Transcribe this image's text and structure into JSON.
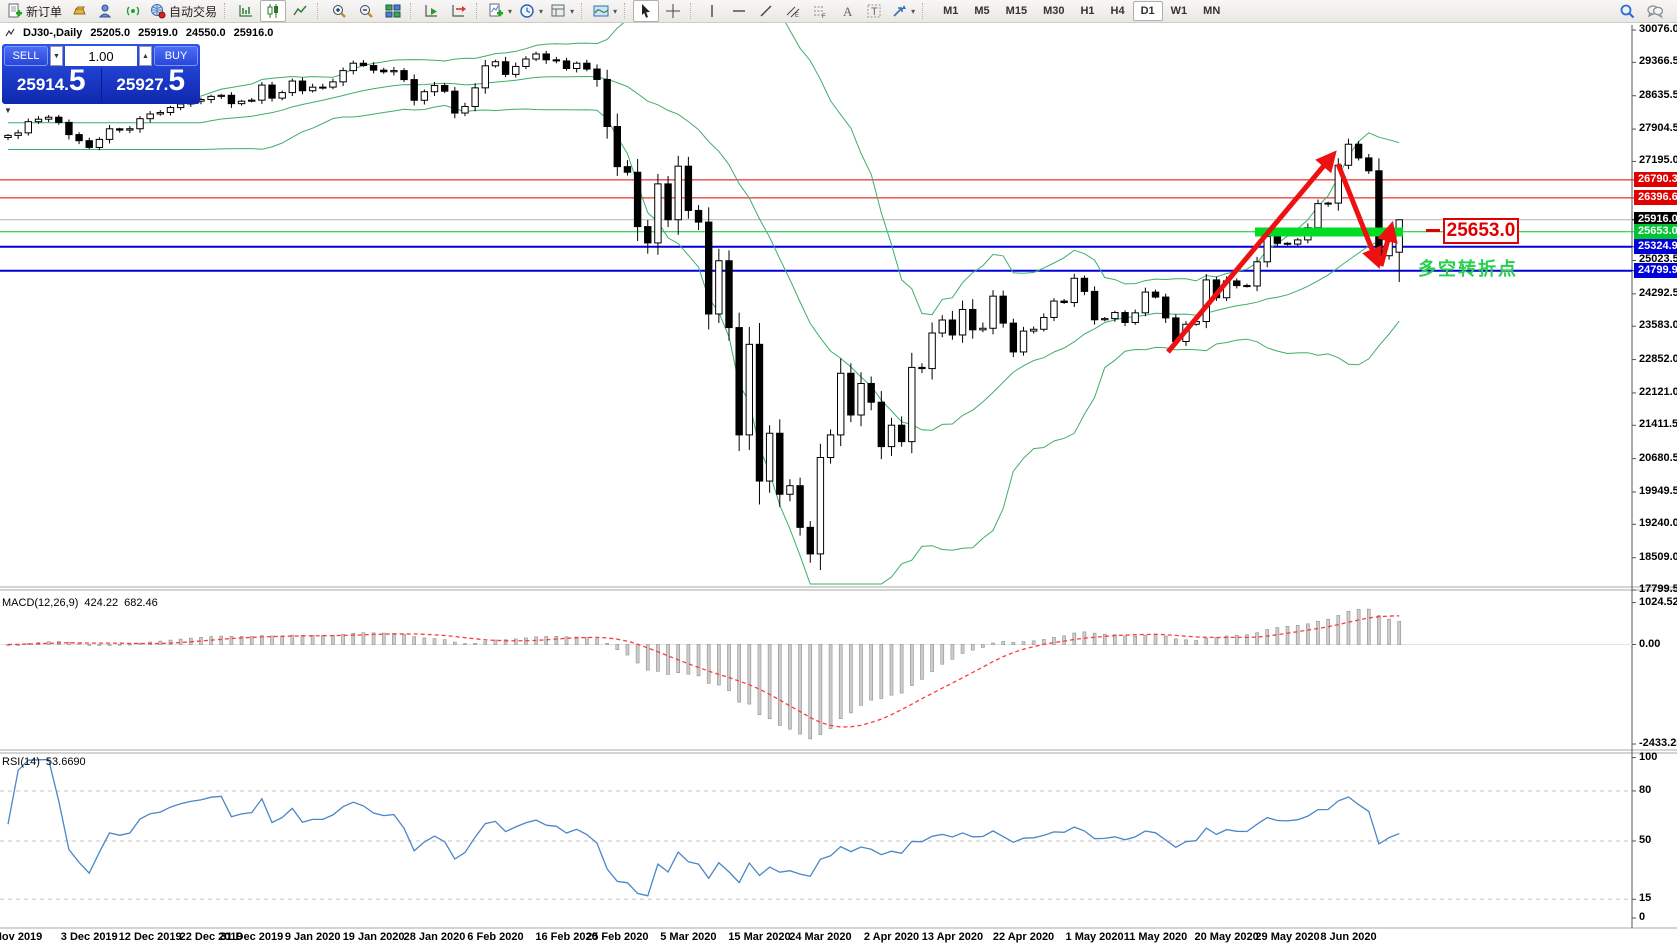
{
  "toolbar": {
    "new_order_label": "新订单",
    "autotrade_label": "自动交易",
    "timeframes": [
      "M1",
      "M5",
      "M15",
      "M30",
      "H1",
      "H4",
      "D1",
      "W1",
      "MN"
    ],
    "active_timeframe": "D1"
  },
  "chart": {
    "symbol_line": {
      "title": "DJ30-,Daily",
      "open": "25205.0",
      "high": "25919.0",
      "low": "24550.0",
      "close": "25916.0"
    },
    "trade_panel": {
      "sell_label": "SELL",
      "buy_label": "BUY",
      "volume": "1.00",
      "sell_int": "25914.",
      "sell_frac": "5",
      "buy_int": "25927.",
      "buy_frac": "5"
    },
    "axis_ticks": [
      "30076.0",
      "29366.5",
      "28635.5",
      "27904.5",
      "27195.0",
      "25023.5",
      "24292.5",
      "23583.0",
      "22852.0",
      "22121.0",
      "21411.5",
      "20680.5",
      "19949.5",
      "19240.0",
      "18509.0",
      "17799.5"
    ],
    "badges": [
      {
        "value": "26790.3",
        "price": 26790.3,
        "color": "#e00000"
      },
      {
        "value": "26396.6",
        "price": 26396.6,
        "color": "#e00000"
      },
      {
        "value": "25916.0",
        "price": 25916.0,
        "color": "#000000"
      },
      {
        "value": "25653.0",
        "price": 25653.0,
        "color": "#00c432"
      },
      {
        "value": "25324.9",
        "price": 25324.9,
        "color": "#0000d8"
      },
      {
        "value": "24799.9",
        "price": 24799.9,
        "color": "#0000d8"
      }
    ],
    "hlines": [
      {
        "price": 26790.3,
        "color": "#e00000",
        "width": 1
      },
      {
        "price": 26396.6,
        "color": "#e00000",
        "width": 1
      },
      {
        "price": 25916.0,
        "color": "#b4b4b4",
        "width": 1
      },
      {
        "price": 25653.0,
        "color": "#00c432",
        "width": 1
      },
      {
        "price": 25324.9,
        "color": "#0000d8",
        "width": 2
      },
      {
        "price": 24799.9,
        "color": "#0000d8",
        "width": 2
      }
    ],
    "dates": [
      {
        "t": "Nov 2019",
        "i": 1
      },
      {
        "t": "3 Dec 2019",
        "i": 8
      },
      {
        "t": "12 Dec 2019",
        "i": 14
      },
      {
        "t": "22 Dec 2019",
        "i": 20
      },
      {
        "t": "31 Dec 2019",
        "i": 24
      },
      {
        "t": "9 Jan 2020",
        "i": 30
      },
      {
        "t": "19 Jan 2020",
        "i": 36
      },
      {
        "t": "28 Jan 2020",
        "i": 42
      },
      {
        "t": "6 Feb 2020",
        "i": 48
      },
      {
        "t": "16 Feb 2020",
        "i": 55
      },
      {
        "t": "25 Feb 2020",
        "i": 60
      },
      {
        "t": "5 Mar 2020",
        "i": 67
      },
      {
        "t": "15 Mar 2020",
        "i": 74
      },
      {
        "t": "24 Mar 2020",
        "i": 80
      },
      {
        "t": "2 Apr 2020",
        "i": 87
      },
      {
        "t": "13 Apr 2020",
        "i": 93
      },
      {
        "t": "22 Apr 2020",
        "i": 100
      },
      {
        "t": "1 May 2020",
        "i": 107
      },
      {
        "t": "11 May 2020",
        "i": 113
      },
      {
        "t": "20 May 2020",
        "i": 120
      },
      {
        "t": "29 May 2020",
        "i": 126
      },
      {
        "t": "8 Jun 2020",
        "i": 132
      }
    ],
    "annotations": {
      "price_label": "25653.0",
      "turning_point": "多空转折点",
      "arrow_color": "#ee1111",
      "band_color": "#00dd22"
    }
  },
  "macd": {
    "name": "MACD(12,26,9)",
    "main": "424.22",
    "signal": "682.46",
    "axis": [
      "1024.52",
      "0.00",
      "-2433.25"
    ]
  },
  "rsi": {
    "name": "RSI(14)",
    "value": "53.6690",
    "axis": [
      "100",
      "80",
      "50",
      "15",
      "0"
    ],
    "levels": [
      80,
      50,
      15
    ]
  },
  "chart_data": {
    "type": "candlestick",
    "symbol": "DJ30-",
    "timeframe": "Daily",
    "title": "DJ30-,Daily",
    "y_axis_range": [
      17799.5,
      30076.0
    ],
    "first_open": 27720,
    "last_ohlc": {
      "o": 25205.0,
      "h": 25919.0,
      "l": 24550.0,
      "c": 25916.0
    },
    "closes": [
      27766,
      27821,
      28066,
      28121,
      28164,
      28051,
      27783,
      27650,
      27502,
      27678,
      27910,
      27882,
      27912,
      28132,
      28235,
      28268,
      28376,
      28455,
      28515,
      28552,
      28621,
      28645,
      28462,
      28515,
      28538,
      28869,
      28583,
      28704,
      28957,
      28745,
      28823,
      28824,
      28939,
      29186,
      29348,
      29297,
      29196,
      29160,
      29186,
      28989,
      28536,
      28723,
      28859,
      28735,
      28256,
      28400,
      28808,
      29291,
      29380,
      29103,
      29277,
      29440,
      29551,
      29423,
      29398,
      29232,
      29348,
      29220,
      28992,
      27961,
      27081,
      26958,
      25767,
      25409,
      26703,
      25917,
      27091,
      26121,
      25865,
      23851,
      25018,
      23553,
      21201,
      23186,
      20189,
      21237,
      19899,
      20087,
      19174,
      18592,
      20705,
      21200,
      22552,
      21637,
      22327,
      21917,
      20944,
      21413,
      21053,
      22680,
      22654,
      23434,
      23719,
      23391,
      23950,
      23504,
      23538,
      24242,
      23651,
      23019,
      23476,
      23516,
      23775,
      24134,
      24102,
      24634,
      24346,
      23724,
      23749,
      23883,
      23665,
      23876,
      24331,
      24222,
      23765,
      23248,
      23626,
      23685,
      24598,
      24207,
      24576,
      24474,
      24465,
      24995,
      25548,
      25401,
      25383,
      25475,
      25743,
      26270,
      26282,
      27111,
      27572,
      27272,
      26990,
      25128,
      25605,
      25916
    ],
    "indicators": {
      "bollinger": {
        "period": 20,
        "deviation": 2
      },
      "macd": {
        "fast": 12,
        "slow": 26,
        "signal": 9
      },
      "rsi": {
        "period": 14
      }
    }
  }
}
